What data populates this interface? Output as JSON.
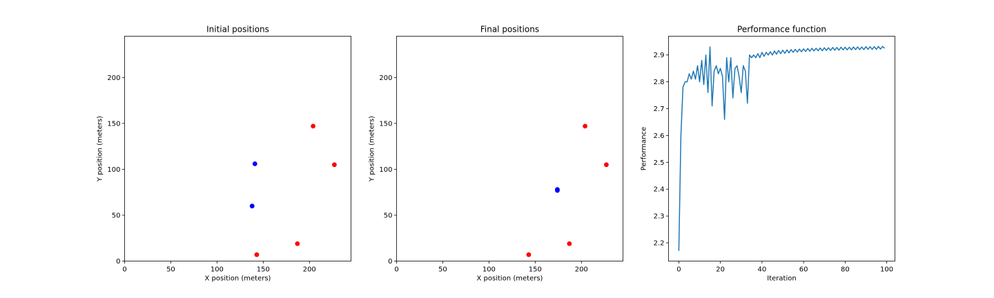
{
  "chart_data": [
    {
      "type": "scatter",
      "title": "Initial positions",
      "xlabel": "X position (meters)",
      "ylabel": "Y position (meters)",
      "xlim": [
        0,
        245
      ],
      "ylim": [
        0,
        245
      ],
      "xticks": [
        0,
        50,
        100,
        150,
        200
      ],
      "yticks": [
        0,
        50,
        100,
        150,
        200
      ],
      "grid": false,
      "series": [
        {
          "color": "#ff0000",
          "points": [
            [
              204,
              147
            ],
            [
              227,
              105
            ],
            [
              187,
              19
            ],
            [
              143,
              7
            ]
          ]
        },
        {
          "color": "#0000ff",
          "points": [
            [
              141,
              106
            ],
            [
              138,
              60
            ]
          ]
        }
      ]
    },
    {
      "type": "scatter",
      "title": "Final positions",
      "xlabel": "X position (meters)",
      "ylabel": "Y position (meters)",
      "xlim": [
        0,
        245
      ],
      "ylim": [
        0,
        245
      ],
      "xticks": [
        0,
        50,
        100,
        150,
        200
      ],
      "yticks": [
        0,
        50,
        100,
        150,
        200
      ],
      "grid": false,
      "series": [
        {
          "color": "#ff0000",
          "points": [
            [
              204,
              147
            ],
            [
              227,
              105
            ],
            [
              187,
              19
            ],
            [
              143,
              7
            ]
          ]
        },
        {
          "color": "#0000ff",
          "points": [
            [
              174,
              78
            ],
            [
              174,
              77
            ]
          ]
        }
      ]
    },
    {
      "type": "line",
      "title": "Performance function",
      "xlabel": "Iteration",
      "ylabel": "Performance",
      "xlim": [
        -4.95,
        103.95
      ],
      "ylim": [
        2.132,
        2.97
      ],
      "xticks": [
        0,
        20,
        40,
        60,
        80,
        100
      ],
      "yticks": [
        2.2,
        2.3,
        2.4,
        2.5,
        2.6,
        2.7,
        2.8,
        2.9
      ],
      "grid": false,
      "series": [
        {
          "color": "#1f77b4",
          "values": [
            2.17,
            2.6,
            2.78,
            2.8,
            2.8,
            2.83,
            2.81,
            2.84,
            2.81,
            2.86,
            2.8,
            2.88,
            2.79,
            2.9,
            2.76,
            2.93,
            2.71,
            2.84,
            2.86,
            2.83,
            2.85,
            2.82,
            2.66,
            2.89,
            2.8,
            2.89,
            2.74,
            2.85,
            2.86,
            2.82,
            2.76,
            2.86,
            2.84,
            2.72,
            2.9,
            2.89,
            2.9,
            2.89,
            2.905,
            2.89,
            2.91,
            2.895,
            2.91,
            2.9,
            2.912,
            2.9,
            2.915,
            2.903,
            2.917,
            2.905,
            2.918,
            2.906,
            2.919,
            2.908,
            2.92,
            2.91,
            2.921,
            2.911,
            2.922,
            2.912,
            2.923,
            2.913,
            2.924,
            2.914,
            2.925,
            2.915,
            2.925,
            2.916,
            2.926,
            2.916,
            2.927,
            2.917,
            2.927,
            2.917,
            2.928,
            2.918,
            2.928,
            2.918,
            2.929,
            2.919,
            2.929,
            2.919,
            2.929,
            2.919,
            2.93,
            2.92,
            2.93,
            2.92,
            2.93,
            2.92,
            2.931,
            2.921,
            2.931,
            2.921,
            2.931,
            2.921,
            2.932,
            2.922,
            2.932,
            2.925
          ]
        }
      ]
    }
  ]
}
